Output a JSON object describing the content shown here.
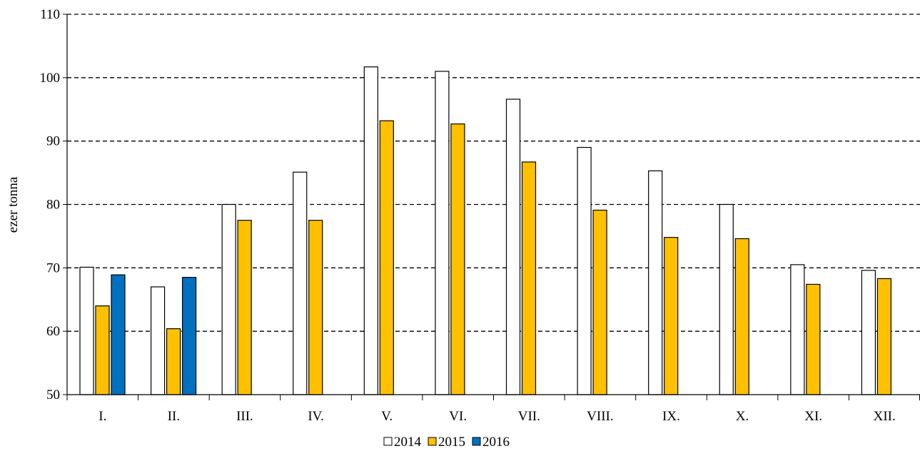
{
  "chart_data": {
    "type": "bar",
    "title": "",
    "xlabel": "",
    "ylabel": "ezer tonna",
    "ylim": [
      50,
      110
    ],
    "yticks": [
      50,
      60,
      70,
      80,
      90,
      100,
      110
    ],
    "grid": "horizontal-dashed",
    "legend": "bottom-center",
    "categories": [
      "I.",
      "II.",
      "III.",
      "IV.",
      "V.",
      "VI.",
      "VII.",
      "VIII.",
      "IX.",
      "X.",
      "XI.",
      "XII."
    ],
    "series": [
      {
        "name": "2014",
        "color": "#ffffff",
        "values": [
          70.1,
          67.0,
          80.0,
          85.1,
          101.7,
          101.0,
          96.6,
          89.0,
          85.3,
          80.0,
          70.5,
          69.6
        ]
      },
      {
        "name": "2015",
        "color": "#ffc000",
        "values": [
          64.0,
          60.4,
          77.5,
          77.5,
          93.2,
          92.7,
          86.7,
          79.1,
          74.8,
          74.6,
          67.4,
          68.3
        ]
      },
      {
        "name": "2016",
        "color": "#0070c0",
        "values": [
          68.9,
          68.5,
          null,
          null,
          null,
          null,
          null,
          null,
          null,
          null,
          null,
          null
        ]
      }
    ]
  }
}
